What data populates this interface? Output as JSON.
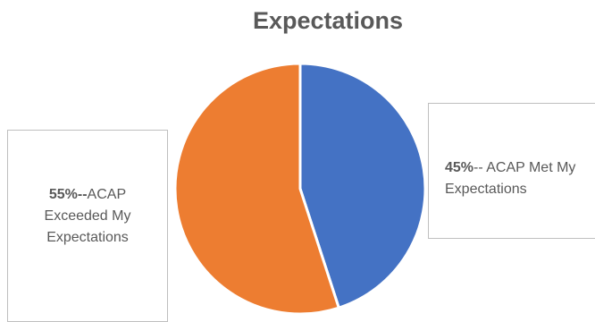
{
  "chart_data": {
    "type": "pie",
    "title": "Expectations",
    "slices": [
      {
        "percent_label": "45%",
        "separator": "--",
        "text": " ACAP Met My Expectations",
        "value": 45,
        "color": "#4472c4"
      },
      {
        "percent_label": "55%",
        "separator": "--",
        "text": "ACAP Exceeded  My Expectations",
        "value": 55,
        "color": "#ed7d31"
      }
    ],
    "legend": "none",
    "label_placement": "callouts"
  }
}
